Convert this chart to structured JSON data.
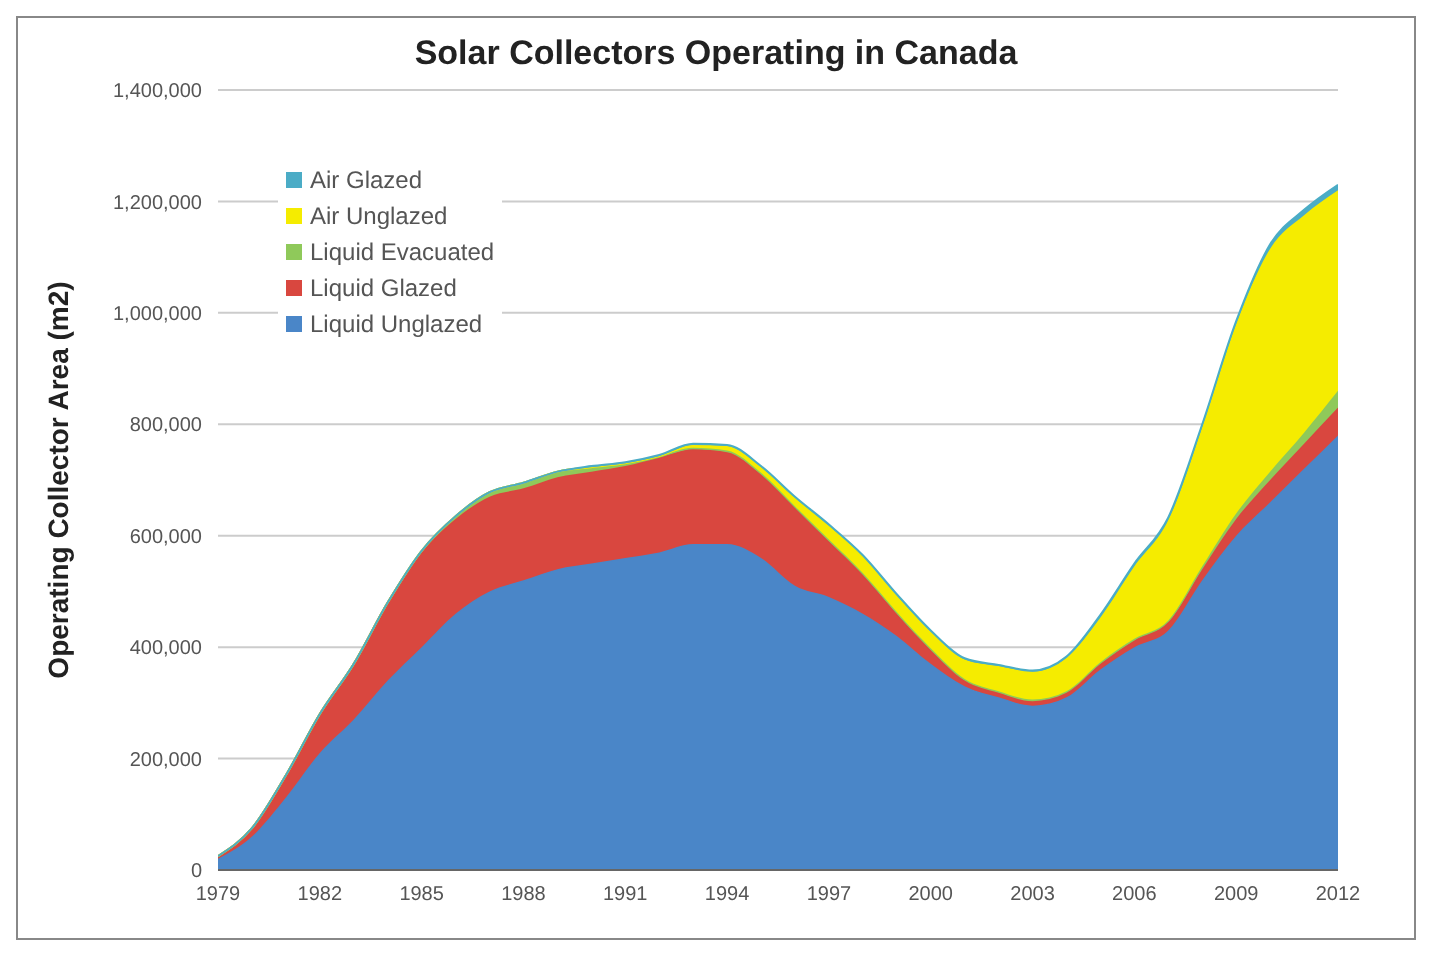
{
  "chart_data": {
    "type": "area",
    "title": "Solar Collectors Operating in Canada",
    "ylabel": "Operating Collector Area (m2)",
    "stacked": true,
    "x": [
      1979,
      1980,
      1981,
      1982,
      1983,
      1984,
      1985,
      1986,
      1987,
      1988,
      1989,
      1990,
      1991,
      1992,
      1993,
      1994,
      1995,
      1996,
      1997,
      1998,
      1999,
      2000,
      2001,
      2002,
      2003,
      2004,
      2005,
      2006,
      2007,
      2008,
      2009,
      2010,
      2011,
      2012
    ],
    "series": [
      {
        "name": "Liquid Unglazed",
        "color": "#4a86c8",
        "values": [
          20000,
          60000,
          130000,
          210000,
          270000,
          340000,
          400000,
          460000,
          500000,
          520000,
          540000,
          550000,
          560000,
          570000,
          585000,
          585000,
          560000,
          510000,
          490000,
          460000,
          420000,
          370000,
          330000,
          310000,
          295000,
          310000,
          360000,
          400000,
          430000,
          520000,
          600000,
          660000,
          720000,
          780000
        ]
      },
      {
        "name": "Liquid Glazed",
        "color": "#d9473f",
        "values": [
          5000,
          15000,
          40000,
          70000,
          100000,
          140000,
          170000,
          170000,
          170000,
          165000,
          165000,
          165000,
          165000,
          170000,
          170000,
          165000,
          150000,
          140000,
          100000,
          70000,
          40000,
          25000,
          10000,
          8000,
          8000,
          8000,
          10000,
          12000,
          15000,
          20000,
          30000,
          40000,
          45000,
          50000
        ]
      },
      {
        "name": "Liquid Evacuated",
        "color": "#8fc95a",
        "values": [
          0,
          0,
          0,
          0,
          0,
          0,
          3000,
          5000,
          8000,
          10000,
          10000,
          8000,
          5000,
          3000,
          3000,
          3000,
          3000,
          3000,
          3000,
          3000,
          3000,
          3000,
          3000,
          3000,
          3000,
          3000,
          3000,
          3000,
          3000,
          5000,
          10000,
          15000,
          20000,
          30000
        ]
      },
      {
        "name": "Air Unglazed",
        "color": "#f5ec00",
        "values": [
          0,
          0,
          0,
          0,
          0,
          0,
          0,
          0,
          0,
          0,
          0,
          0,
          0,
          0,
          5000,
          8000,
          10000,
          15000,
          25000,
          30000,
          30000,
          30000,
          35000,
          45000,
          50000,
          60000,
          80000,
          130000,
          180000,
          250000,
          340000,
          400000,
          390000,
          360000
        ]
      },
      {
        "name": "Air Glazed",
        "color": "#4bacc6",
        "values": [
          0,
          0,
          0,
          0,
          0,
          0,
          0,
          0,
          0,
          0,
          0,
          2000,
          2000,
          2000,
          2000,
          2000,
          2000,
          2000,
          2000,
          2000,
          2000,
          2000,
          2000,
          2000,
          2000,
          2000,
          5000,
          5000,
          5000,
          5000,
          5000,
          8000,
          10000,
          10000
        ]
      }
    ],
    "xlim": [
      1979,
      2012
    ],
    "xticks": [
      1979,
      1982,
      1985,
      1988,
      1991,
      1994,
      1997,
      2000,
      2003,
      2006,
      2009,
      2012
    ],
    "ylim": [
      0,
      1400000
    ],
    "yticks": [
      0,
      {
        "value": 200000,
        "label": "200,000"
      },
      {
        "value": 400000,
        "label": "400,000"
      },
      {
        "value": 600000,
        "label": "600,000"
      },
      {
        "value": 800000,
        "label": "800,000"
      },
      {
        "value": 1000000,
        "label": "1,000,000"
      },
      {
        "value": 1200000,
        "label": "1,200,000"
      },
      {
        "value": 1400000,
        "label": "1,400,000"
      }
    ],
    "grid": "y",
    "legend": "top left"
  }
}
